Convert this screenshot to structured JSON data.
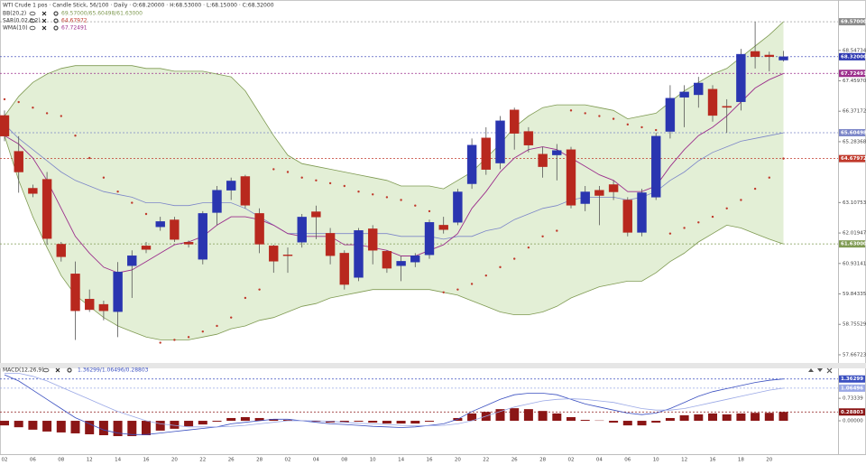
{
  "chart_data": [
    {
      "type": "candlestick",
      "title": "WTI Crude 1 pos · Candle Stick, 56/100 · Daily · O:68.20000 · H:68.53000 · L:68.15000 · C:68.32000",
      "categories": [
        "02",
        null,
        "06",
        null,
        "08",
        null,
        "12",
        null,
        "14",
        null,
        "16",
        null,
        "20",
        null,
        "22",
        null,
        "26",
        null,
        "28",
        null,
        "02",
        null,
        "04",
        null,
        "08",
        null,
        "10",
        null,
        "14",
        null,
        "16",
        null,
        "20",
        null,
        "22",
        null,
        "26",
        null,
        "28",
        null,
        "02",
        null,
        "04",
        null,
        "06",
        null,
        "10",
        null,
        "12",
        null,
        "16",
        null,
        "18",
        null,
        "20",
        null
      ],
      "up_color": "#2a35b0",
      "down_color": "#b8281e",
      "open": [
        66.22,
        64.94,
        63.62,
        63.94,
        61.62,
        60.56,
        59.66,
        59.47,
        59.21,
        60.85,
        61.56,
        62.24,
        62.49,
        61.69,
        61.08,
        62.75,
        63.55,
        64.04,
        62.72,
        61.56,
        61.24,
        61.69,
        62.78,
        62.01,
        61.3,
        60.43,
        62.17,
        61.37,
        60.85,
        60.98,
        61.24,
        62.3,
        62.4,
        63.78,
        65.42,
        64.52,
        66.42,
        65.65,
        64.84,
        64.81,
        65.0,
        63.07,
        63.55,
        63.75,
        63.2,
        62.04,
        63.3,
        65.65,
        66.87,
        66.96,
        67.16,
        66.55,
        66.71,
        68.51,
        68.38,
        68.2
      ],
      "high": [
        66.4,
        65.48,
        63.75,
        64.2,
        61.7,
        61.0,
        60.0,
        59.6,
        60.98,
        61.4,
        61.7,
        62.6,
        62.6,
        61.75,
        62.8,
        63.7,
        64.0,
        64.1,
        62.9,
        61.6,
        61.5,
        62.7,
        63.0,
        62.2,
        61.4,
        62.2,
        62.3,
        61.4,
        61.2,
        61.3,
        62.5,
        62.6,
        63.6,
        65.4,
        65.8,
        66.2,
        66.5,
        65.8,
        65.1,
        65.2,
        65.1,
        63.7,
        63.7,
        63.9,
        63.3,
        63.6,
        65.6,
        67.3,
        67.3,
        67.6,
        67.3,
        66.8,
        68.6,
        69.57,
        68.5,
        68.53
      ],
      "low": [
        65.3,
        63.46,
        63.3,
        61.6,
        61.0,
        58.2,
        59.2,
        58.9,
        58.3,
        59.7,
        61.3,
        62.1,
        61.7,
        61.5,
        60.9,
        62.3,
        63.2,
        62.9,
        61.3,
        60.6,
        60.6,
        61.5,
        61.8,
        60.9,
        60.0,
        60.3,
        60.9,
        60.6,
        60.3,
        60.8,
        61.1,
        62.0,
        62.3,
        63.6,
        64.1,
        64.3,
        65.0,
        64.9,
        64.0,
        63.9,
        62.9,
        62.8,
        62.3,
        63.2,
        61.9,
        61.9,
        63.2,
        65.4,
        65.8,
        66.5,
        66.0,
        65.6,
        66.4,
        67.9,
        67.8,
        68.15
      ],
      "close": [
        65.48,
        64.2,
        63.43,
        61.82,
        61.17,
        59.24,
        59.28,
        59.24,
        60.63,
        61.21,
        61.43,
        62.43,
        61.79,
        61.62,
        62.72,
        63.55,
        63.88,
        63.01,
        61.62,
        61.01,
        61.21,
        62.59,
        62.59,
        61.21,
        60.18,
        62.11,
        61.4,
        60.76,
        61.01,
        61.21,
        62.4,
        62.14,
        63.49,
        65.16,
        64.29,
        66.03,
        65.58,
        65.16,
        64.39,
        64.97,
        63.01,
        63.49,
        63.36,
        63.49,
        62.04,
        63.46,
        65.48,
        66.84,
        67.06,
        67.38,
        66.22,
        66.51,
        68.41,
        68.32,
        68.32,
        68.32
      ],
      "series": [
        {
          "name": "BB(20,2)",
          "value_label": "69.57000/65.60498/61.63000",
          "color": "#7f9a52",
          "fill": "#e3efd6",
          "mid_color": "#7c86c8",
          "upper": [
            66.2,
            66.9,
            67.4,
            67.7,
            67.9,
            68.0,
            68.0,
            68.0,
            68.0,
            68.0,
            67.9,
            67.9,
            67.8,
            67.8,
            67.8,
            67.7,
            67.6,
            67.1,
            66.3,
            65.5,
            64.8,
            64.5,
            64.4,
            64.3,
            64.2,
            64.1,
            64.0,
            63.9,
            63.7,
            63.7,
            63.7,
            63.6,
            63.9,
            64.2,
            64.7,
            65.2,
            65.8,
            66.2,
            66.5,
            66.6,
            66.6,
            66.6,
            66.5,
            66.4,
            66.1,
            66.2,
            66.3,
            66.7,
            67.1,
            67.4,
            67.7,
            67.9,
            68.3,
            68.7,
            69.1,
            69.57
          ],
          "middle": [
            65.9,
            65.4,
            65.0,
            64.6,
            64.2,
            63.9,
            63.7,
            63.5,
            63.4,
            63.3,
            63.1,
            63.1,
            63.0,
            63.0,
            63.1,
            63.1,
            63.1,
            62.9,
            62.6,
            62.3,
            62.0,
            62.0,
            62.0,
            62.0,
            62.0,
            62.0,
            62.0,
            62.0,
            61.9,
            61.9,
            61.9,
            61.8,
            61.9,
            61.9,
            62.1,
            62.2,
            62.5,
            62.7,
            62.9,
            63.0,
            63.2,
            63.3,
            63.3,
            63.3,
            63.2,
            63.3,
            63.5,
            63.9,
            64.2,
            64.6,
            64.9,
            65.1,
            65.3,
            65.4,
            65.5,
            65.6
          ],
          "lower": [
            65.5,
            63.9,
            62.6,
            61.5,
            60.5,
            59.8,
            59.4,
            59.0,
            58.7,
            58.5,
            58.3,
            58.2,
            58.2,
            58.2,
            58.3,
            58.4,
            58.6,
            58.7,
            58.9,
            59.0,
            59.2,
            59.4,
            59.5,
            59.7,
            59.8,
            59.9,
            60.0,
            60.0,
            60.0,
            60.0,
            60.0,
            59.9,
            59.8,
            59.6,
            59.4,
            59.2,
            59.1,
            59.1,
            59.2,
            59.4,
            59.7,
            59.9,
            60.1,
            60.2,
            60.3,
            60.3,
            60.6,
            61.0,
            61.3,
            61.7,
            62.0,
            62.3,
            62.2,
            62.0,
            61.8,
            61.63
          ]
        },
        {
          "name": "SAR(0.02,0.2)",
          "value_label": "64.67972",
          "color": "#c0392b",
          "values": [
            66.8,
            66.7,
            66.5,
            66.3,
            66.2,
            65.5,
            64.7,
            64.0,
            63.5,
            63.1,
            62.7,
            58.1,
            58.2,
            58.3,
            58.5,
            58.7,
            59.0,
            59.7,
            60.0,
            64.3,
            64.2,
            64.0,
            63.9,
            63.8,
            63.7,
            63.5,
            63.4,
            63.3,
            63.2,
            63.0,
            62.8,
            59.9,
            60.0,
            60.2,
            60.5,
            60.8,
            61.1,
            61.5,
            61.9,
            62.1,
            66.4,
            66.3,
            66.2,
            66.1,
            65.9,
            65.8,
            65.7,
            62.0,
            62.2,
            62.4,
            62.6,
            62.9,
            63.2,
            63.6,
            64.0,
            64.68
          ]
        },
        {
          "name": "WMA(10)",
          "value_label": "67.72491",
          "color": "#9c2f8c",
          "values": [
            65.5,
            65.2,
            64.7,
            63.9,
            62.9,
            61.9,
            61.3,
            60.8,
            60.6,
            60.7,
            61.0,
            61.3,
            61.6,
            61.7,
            61.9,
            62.3,
            62.6,
            62.6,
            62.5,
            62.3,
            62.0,
            61.9,
            61.9,
            61.9,
            61.6,
            61.6,
            61.5,
            61.4,
            61.2,
            61.2,
            61.4,
            61.6,
            62.0,
            62.9,
            63.5,
            64.2,
            64.7,
            65.0,
            65.1,
            65.0,
            64.7,
            64.4,
            64.1,
            63.9,
            63.5,
            63.5,
            63.7,
            64.4,
            65.0,
            65.5,
            65.8,
            66.2,
            66.7,
            67.2,
            67.5,
            67.72
          ]
        }
      ],
      "ylim": [
        57.44,
        69.96
      ],
      "yticks": [
        68.54734,
        {
          "value": 67.4597,
          "label": "67.45970"
        },
        66.37172,
        65.28368,
        63.10753,
        62.01947,
        60.93141,
        59.84335,
        58.75529,
        57.66723
      ],
      "tags": [
        {
          "value": 69.57,
          "label": "69.57000",
          "color": "#8a8a8a"
        },
        {
          "value": 68.32,
          "label": "68.32000",
          "color": "#2a35b0"
        },
        {
          "value": 67.72491,
          "color": "#9c2f8c"
        },
        {
          "value": 65.60498,
          "color": "#7c86c8"
        },
        {
          "value": 64.67972,
          "color": "#c0392b"
        },
        {
          "value": 61.63,
          "label": "61.63000",
          "color": "#7f9a52"
        }
      ]
    },
    {
      "type": "macd",
      "title": "MACD(12,26,9)",
      "value_label": "1.36299/1.06496/0.28803",
      "lines": [
        {
          "color": "#3a4fc0",
          "values": [
            1.5,
            1.3,
            1.0,
            0.7,
            0.4,
            0.1,
            -0.1,
            -0.3,
            -0.4,
            -0.45,
            -0.45,
            -0.4,
            -0.35,
            -0.3,
            -0.25,
            -0.2,
            -0.1,
            -0.05,
            0.0,
            0.05,
            0.05,
            0.0,
            -0.05,
            -0.1,
            -0.12,
            -0.15,
            -0.18,
            -0.2,
            -0.22,
            -0.2,
            -0.15,
            -0.1,
            0.05,
            0.3,
            0.5,
            0.7,
            0.85,
            0.9,
            0.9,
            0.85,
            0.7,
            0.55,
            0.45,
            0.35,
            0.25,
            0.2,
            0.25,
            0.4,
            0.6,
            0.8,
            0.95,
            1.05,
            1.15,
            1.25,
            1.32,
            1.36299
          ]
        },
        {
          "color": "#9aa8e6",
          "values": [
            1.55,
            1.55,
            1.45,
            1.3,
            1.1,
            0.9,
            0.7,
            0.5,
            0.3,
            0.15,
            0.0,
            -0.1,
            -0.15,
            -0.2,
            -0.2,
            -0.2,
            -0.18,
            -0.15,
            -0.1,
            -0.05,
            0.0,
            0.0,
            0.0,
            -0.02,
            -0.05,
            -0.08,
            -0.1,
            -0.12,
            -0.15,
            -0.16,
            -0.16,
            -0.15,
            -0.1,
            0.0,
            0.15,
            0.3,
            0.45,
            0.55,
            0.65,
            0.7,
            0.72,
            0.7,
            0.65,
            0.6,
            0.5,
            0.4,
            0.35,
            0.35,
            0.4,
            0.5,
            0.6,
            0.7,
            0.8,
            0.9,
            1.0,
            1.06496
          ]
        }
      ],
      "histogram": {
        "color": "#8b1616",
        "values": [
          -0.15,
          -0.21,
          -0.29,
          -0.35,
          -0.38,
          -0.41,
          -0.44,
          -0.47,
          -0.5,
          -0.5,
          -0.47,
          -0.32,
          -0.26,
          -0.18,
          -0.12,
          -0.03,
          0.09,
          0.12,
          0.09,
          0.06,
          0.03,
          0.01,
          -0.03,
          -0.06,
          -0.06,
          -0.03,
          -0.06,
          -0.09,
          -0.09,
          -0.09,
          -0.03,
          0.0,
          0.09,
          0.24,
          0.29,
          0.38,
          0.41,
          0.38,
          0.32,
          0.24,
          0.12,
          0.03,
          0.01,
          -0.06,
          -0.15,
          -0.15,
          -0.06,
          0.09,
          0.18,
          0.21,
          0.24,
          0.21,
          0.24,
          0.26,
          0.26,
          0.28803
        ]
      },
      "ylim": [
        -1.0,
        1.65
      ],
      "yticks": [
        0.73339,
        {
          "value": 0,
          "label": "0.00000"
        }
      ],
      "tags": [
        {
          "value": 1.36299,
          "color": "#3a4fc0"
        },
        {
          "value": 1.06496,
          "color": "#9aa8e6"
        },
        {
          "value": 0.28803,
          "color": "#8b1616"
        }
      ]
    }
  ]
}
